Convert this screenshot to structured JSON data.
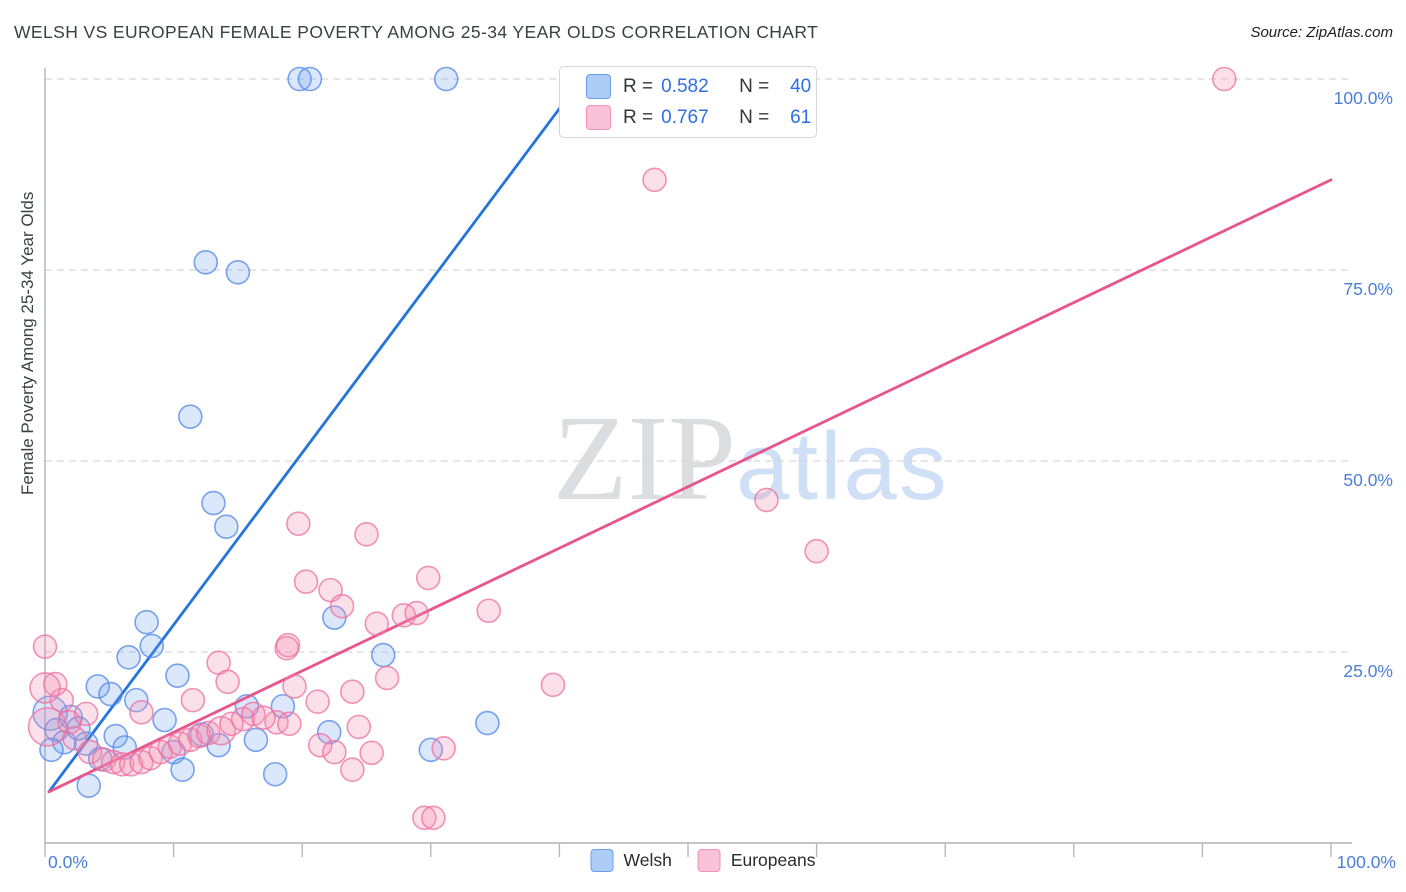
{
  "title": "WELSH VS EUROPEAN FEMALE POVERTY AMONG 25-34 YEAR OLDS CORRELATION CHART",
  "source": "Source: ZipAtlas.com",
  "watermark": {
    "zip": "ZIP",
    "atlas": "atlas"
  },
  "stats_legend": {
    "rows": [
      {
        "series": "Welsh",
        "r_label": "R =",
        "r_value": "0.582",
        "n_label": "N =",
        "n_value": "40"
      },
      {
        "series": "Europeans",
        "r_label": "R =",
        "r_value": "0.767",
        "n_label": "N =",
        "n_value": "61"
      }
    ]
  },
  "axes": {
    "y_title": "Female Poverty Among 25-34 Year Olds",
    "y_tick_labels": [
      "100.0%",
      "75.0%",
      "50.0%",
      "25.0%"
    ],
    "x_min_label": "0.0%",
    "x_max_label": "100.0%"
  },
  "bottom_legend": [
    {
      "label": "Welsh"
    },
    {
      "label": "Europeans"
    }
  ],
  "colors": {
    "axis_label_blue": "#4b7fd7",
    "value_blue": "#2f6fe4",
    "welsh_stroke": "#4e86ea",
    "welsh_fill": "rgba(110,160,240,0.25)",
    "euro_stroke": "#ee6f9f",
    "euro_fill": "rgba(244,143,177,0.28)",
    "welsh_trend": "#2474dd",
    "euro_trend": "#e8558c",
    "grid": "#d8d8d8",
    "axis_line": "#aeb2b8"
  },
  "chart_data": {
    "type": "scatter",
    "title": "WELSH VS EUROPEAN FEMALE POVERTY AMONG 25-34 YEAR OLDS CORRELATION CHART",
    "xlabel": "",
    "ylabel": "Female Poverty Among 25-34 Year Olds",
    "xlim": [
      0,
      100
    ],
    "ylim": [
      0,
      100
    ],
    "x_ticks_pct": [
      0,
      10,
      20,
      30,
      40,
      50,
      60,
      70,
      80,
      90,
      100
    ],
    "y_gridlines_pct": [
      25,
      50,
      75,
      100
    ],
    "grid": "horizontal-dashed",
    "legend_position": "top-center",
    "series": [
      {
        "name": "Welsh",
        "R": 0.582,
        "N": 40,
        "trend": {
          "x1": 0.3,
          "y1": 6.7,
          "x2": 41.5,
          "y2": 99.5
        },
        "points": [
          [
            19.8,
            100
          ],
          [
            20.6,
            100
          ],
          [
            31.2,
            100
          ],
          [
            12.5,
            76.0
          ],
          [
            15.0,
            74.7
          ],
          [
            11.3,
            55.8
          ],
          [
            13.1,
            44.5
          ],
          [
            14.1,
            41.4
          ],
          [
            7.9,
            28.9
          ],
          [
            8.3,
            25.8
          ],
          [
            6.5,
            24.3
          ],
          [
            10.3,
            21.9
          ],
          [
            4.1,
            20.5
          ],
          [
            5.1,
            19.5
          ],
          [
            7.1,
            18.7
          ],
          [
            15.7,
            17.9
          ],
          [
            9.3,
            16.1
          ],
          [
            0.4,
            17.0,
            17
          ],
          [
            0.9,
            14.8
          ],
          [
            1.5,
            13.2
          ],
          [
            3.2,
            13.0
          ],
          [
            0.5,
            12.2
          ],
          [
            3.4,
            7.5
          ],
          [
            10.0,
            11.9
          ],
          [
            10.7,
            9.6
          ],
          [
            18.5,
            17.9
          ],
          [
            22.1,
            14.5
          ],
          [
            17.9,
            9.0
          ],
          [
            22.5,
            29.5
          ],
          [
            26.3,
            24.6
          ],
          [
            30.0,
            12.2
          ],
          [
            34.4,
            15.7
          ],
          [
            2.0,
            16.5
          ],
          [
            2.6,
            15.0
          ],
          [
            5.5,
            14.0
          ],
          [
            6.2,
            12.5
          ],
          [
            4.3,
            11.0
          ],
          [
            12.2,
            14.2
          ],
          [
            13.5,
            12.8
          ],
          [
            16.4,
            13.5
          ]
        ]
      },
      {
        "name": "Europeans",
        "R": 0.767,
        "N": 61,
        "trend": {
          "x1": 0.3,
          "y1": 6.7,
          "x2": 100,
          "y2": 86.8
        },
        "points": [
          [
            2.3,
            13.7
          ],
          [
            3.5,
            11.9
          ],
          [
            4.6,
            10.9
          ],
          [
            5.3,
            10.6
          ],
          [
            6.0,
            10.3
          ],
          [
            6.7,
            10.3
          ],
          [
            7.5,
            10.6
          ],
          [
            8.2,
            11.1
          ],
          [
            9.0,
            11.9
          ],
          [
            9.7,
            12.6
          ],
          [
            10.5,
            13.0
          ],
          [
            11.3,
            13.5
          ],
          [
            12.0,
            14.0
          ],
          [
            12.7,
            14.4
          ],
          [
            13.7,
            14.7,
            14
          ],
          [
            14.5,
            15.6
          ],
          [
            15.4,
            16.2
          ],
          [
            16.2,
            16.9
          ],
          [
            0.8,
            20.8
          ],
          [
            1.3,
            18.7
          ],
          [
            0.2,
            15.2,
            19
          ],
          [
            1.9,
            15.8
          ],
          [
            3.2,
            16.9
          ],
          [
            7.5,
            17.1
          ],
          [
            11.5,
            18.7
          ],
          [
            0.0,
            20.3,
            15
          ],
          [
            0.0,
            25.7
          ],
          [
            19.7,
            41.8
          ],
          [
            25.0,
            40.4
          ],
          [
            20.3,
            34.2
          ],
          [
            22.2,
            33.1
          ],
          [
            23.1,
            31.0
          ],
          [
            25.8,
            28.7
          ],
          [
            27.9,
            29.8
          ],
          [
            28.9,
            30.1
          ],
          [
            29.8,
            34.7
          ],
          [
            34.5,
            30.4
          ],
          [
            18.8,
            25.5
          ],
          [
            19.4,
            20.5
          ],
          [
            21.2,
            18.5
          ],
          [
            18.0,
            15.8
          ],
          [
            17.0,
            16.4
          ],
          [
            19.0,
            15.6
          ],
          [
            21.4,
            12.8
          ],
          [
            22.5,
            11.9
          ],
          [
            23.9,
            9.6
          ],
          [
            24.4,
            15.2
          ],
          [
            25.4,
            11.8
          ],
          [
            31.0,
            12.4
          ],
          [
            39.5,
            20.7
          ],
          [
            13.5,
            23.6
          ],
          [
            14.2,
            21.1
          ],
          [
            18.9,
            25.9
          ],
          [
            23.9,
            19.8
          ],
          [
            26.6,
            21.6
          ],
          [
            29.5,
            3.3
          ],
          [
            30.2,
            3.3
          ],
          [
            47.4,
            86.8
          ],
          [
            56.1,
            44.9
          ],
          [
            60.0,
            38.2
          ],
          [
            91.7,
            100
          ]
        ]
      }
    ]
  }
}
